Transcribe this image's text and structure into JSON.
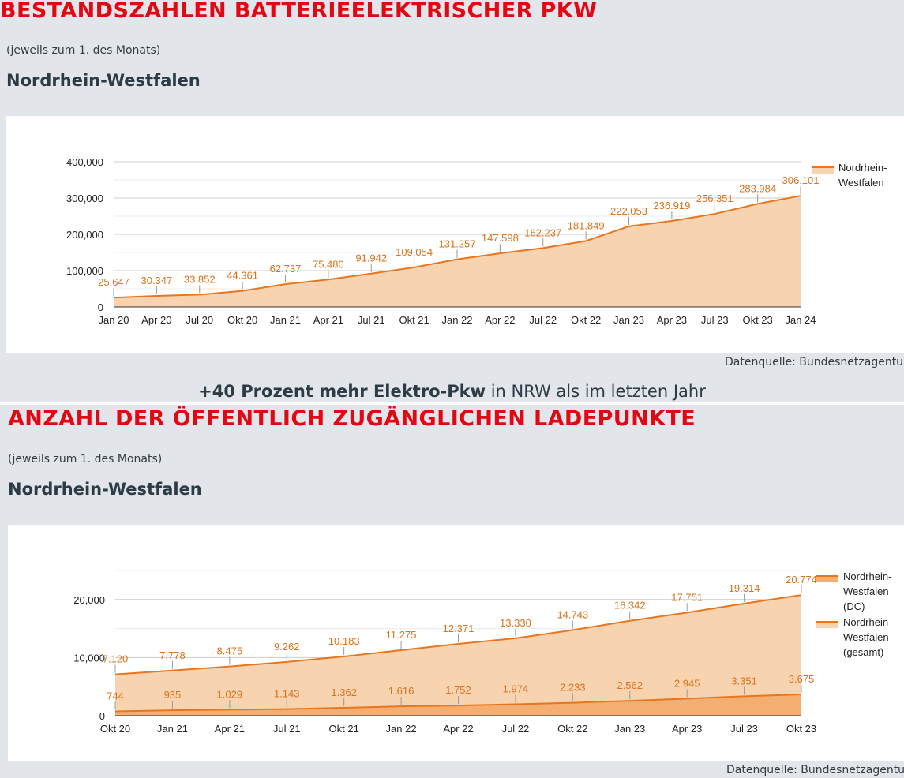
{
  "sections": [
    {
      "title": "BESTANDSZAHLEN BATTERIEELEKTRISCHER PKW",
      "subtitle": "(jeweils zum 1. des Monats)",
      "region": "Nordrhein-Westfalen",
      "source": "Datenquelle: Bundesnetzagentur"
    },
    {
      "title": "ANZAHL DER ÖFFENTLICH ZUGÄNGLICHEN LADEPUNKTE",
      "subtitle": "(jeweils zum 1. des Monats)",
      "region": "Nordrhein-Westfalen",
      "source": "Datenquelle: Bundesnetzagentur"
    }
  ],
  "headline": {
    "bold": "+40 Prozent mehr Elektro-Pkw",
    "rest": " in NRW als im letzten Jahr"
  },
  "colors": {
    "line": "#e8761e",
    "fill_light": "#f8d3b0",
    "fill_dark": "#f4ae72",
    "label": "#d9731c",
    "title_red": "#e30613"
  },
  "chart_data": [
    {
      "type": "area",
      "x": [
        "Jan 20",
        "Apr 20",
        "Jul 20",
        "Okt 20",
        "Jan 21",
        "Apr 21",
        "Jul 21",
        "Okt 21",
        "Jan 22",
        "Apr 22",
        "Jul 22",
        "Okt 22",
        "Jan 23",
        "Apr 23",
        "Jul 23",
        "Okt 23",
        "Jan 24"
      ],
      "series": [
        {
          "name": "Nordrhein-Westfalen",
          "values": [
            25647,
            30347,
            33852,
            44361,
            62737,
            75480,
            91942,
            109054,
            131257,
            147598,
            162237,
            181849,
            222053,
            236919,
            256351,
            283984,
            306101
          ],
          "labels": [
            "25.647",
            "30.347",
            "33.852",
            "44.361",
            "62.737",
            "75.480",
            "91.942",
            "109.054",
            "131.257",
            "147.598",
            "162.237",
            "181.849",
            "222.053",
            "236.919",
            "256.351",
            "283.984",
            "306.101"
          ]
        }
      ],
      "ylim": [
        0,
        400000
      ],
      "yticks": [
        0,
        100000,
        200000,
        300000,
        400000
      ],
      "ytick_labels": [
        "0",
        "100,000",
        "200,000",
        "300,000",
        "400,000"
      ],
      "legend": "right",
      "grid": true
    },
    {
      "type": "area",
      "x": [
        "Okt 20",
        "Jan 21",
        "Apr 21",
        "Jul 21",
        "Okt 21",
        "Jan 22",
        "Apr 22",
        "Jul 22",
        "Okt 22",
        "Jan 23",
        "Apr 23",
        "Jul 23",
        "Okt 23"
      ],
      "series": [
        {
          "name": "Nordrhein-Westfalen (DC)",
          "values": [
            744,
            935,
            1029,
            1143,
            1362,
            1616,
            1752,
            1974,
            2233,
            2562,
            2945,
            3351,
            3675
          ],
          "labels": [
            "744",
            "935",
            "1.029",
            "1.143",
            "1.362",
            "1.616",
            "1.752",
            "1.974",
            "2.233",
            "2.562",
            "2.945",
            "3.351",
            "3.675"
          ]
        },
        {
          "name": "Nordrhein-Westfalen (gesamt)",
          "values": [
            7120,
            7778,
            8475,
            9262,
            10183,
            11275,
            12371,
            13330,
            14743,
            16342,
            17751,
            19314,
            20774
          ],
          "labels": [
            "7.120",
            "7.778",
            "8.475",
            "9.262",
            "10.183",
            "11.275",
            "12.371",
            "13.330",
            "14.743",
            "16.342",
            "17.751",
            "19.314",
            "20.774"
          ]
        }
      ],
      "ylim": [
        0,
        25000
      ],
      "yticks": [
        0,
        10000,
        20000
      ],
      "ytick_labels": [
        "0",
        "10,000",
        "20,000"
      ],
      "legend": "right",
      "legend_entries": [
        [
          "Nordrhein-",
          "Westfalen",
          "(DC)"
        ],
        [
          "Nordrhein-",
          "Westfalen",
          "(gesamt)"
        ]
      ],
      "grid": true
    }
  ],
  "legend1_lines": [
    "Nordrhein-",
    "Westfalen"
  ]
}
